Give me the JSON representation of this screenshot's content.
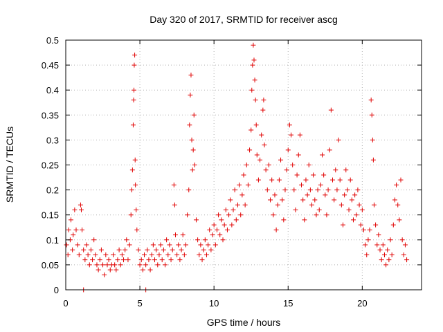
{
  "chart_data": {
    "type": "scatter",
    "title": "Day 320 of 2017, SRMTID for receiver ascg",
    "xlabel": "GPS time / hours",
    "ylabel": "SRMTID / TECUs",
    "xlim": [
      0,
      24
    ],
    "ylim": [
      0,
      0.5
    ],
    "x_ticks": [
      0,
      5,
      10,
      15,
      20
    ],
    "x_tick_labels": [
      "0",
      "5",
      "10",
      "15",
      "20"
    ],
    "y_ticks": [
      0,
      0.05,
      0.1,
      0.15,
      0.2,
      0.25,
      0.3,
      0.35,
      0.4,
      0.45,
      0.5
    ],
    "y_tick_labels": [
      "0",
      "0.05",
      "0.1",
      "0.15",
      "0.2",
      "0.25",
      "0.3",
      "0.35",
      "0.4",
      "0.45",
      "0.5"
    ],
    "grid": true,
    "marker": "plus",
    "series": [
      {
        "name": "SRMTID",
        "color": "#e00000",
        "points": [
          [
            0.05,
            0.09
          ],
          [
            0.15,
            0.07
          ],
          [
            0.2,
            0.12
          ],
          [
            0.3,
            0.1
          ],
          [
            0.35,
            0.14
          ],
          [
            0.45,
            0.08
          ],
          [
            0.5,
            0.11
          ],
          [
            0.6,
            0.16
          ],
          [
            0.7,
            0.12
          ],
          [
            0.8,
            0.09
          ],
          [
            0.9,
            0.07
          ],
          [
            1.0,
            0.17
          ],
          [
            1.05,
            0.16
          ],
          [
            1.1,
            0.12
          ],
          [
            1.2,
            0.08
          ],
          [
            1.3,
            0.06
          ],
          [
            1.4,
            0.09
          ],
          [
            1.5,
            0.07
          ],
          [
            1.6,
            0.05
          ],
          [
            1.7,
            0.08
          ],
          [
            1.8,
            0.06
          ],
          [
            1.9,
            0.1
          ],
          [
            2.0,
            0.07
          ],
          [
            2.1,
            0.05
          ],
          [
            2.2,
            0.04
          ],
          [
            2.3,
            0.06
          ],
          [
            2.4,
            0.08
          ],
          [
            2.5,
            0.05
          ],
          [
            2.6,
            0.03
          ],
          [
            2.7,
            0.07
          ],
          [
            2.8,
            0.05
          ],
          [
            2.9,
            0.06
          ],
          [
            3.0,
            0.04
          ],
          [
            3.1,
            0.05
          ],
          [
            3.2,
            0.07
          ],
          [
            3.3,
            0.05
          ],
          [
            3.4,
            0.04
          ],
          [
            3.5,
            0.06
          ],
          [
            3.6,
            0.08
          ],
          [
            3.7,
            0.05
          ],
          [
            3.8,
            0.07
          ],
          [
            3.9,
            0.06
          ],
          [
            4.0,
            0.08
          ],
          [
            4.1,
            0.1
          ],
          [
            4.2,
            0.06
          ],
          [
            4.3,
            0.09
          ],
          [
            4.4,
            0.15
          ],
          [
            4.45,
            0.2
          ],
          [
            4.5,
            0.24
          ],
          [
            4.55,
            0.33
          ],
          [
            4.58,
            0.38
          ],
          [
            4.6,
            0.4
          ],
          [
            4.62,
            0.45
          ],
          [
            4.65,
            0.47
          ],
          [
            4.68,
            0.26
          ],
          [
            4.7,
            0.21
          ],
          [
            4.75,
            0.16
          ],
          [
            4.8,
            0.12
          ],
          [
            4.9,
            0.08
          ],
          [
            5.0,
            0.05
          ],
          [
            5.1,
            0.06
          ],
          [
            5.2,
            0.04
          ],
          [
            5.3,
            0.07
          ],
          [
            5.4,
            0.05
          ],
          [
            5.5,
            0.08
          ],
          [
            5.6,
            0.06
          ],
          [
            5.7,
            0.04
          ],
          [
            5.8,
            0.07
          ],
          [
            5.9,
            0.09
          ],
          [
            6.0,
            0.06
          ],
          [
            6.1,
            0.08
          ],
          [
            6.2,
            0.05
          ],
          [
            6.3,
            0.07
          ],
          [
            6.4,
            0.09
          ],
          [
            6.5,
            0.06
          ],
          [
            6.6,
            0.08
          ],
          [
            6.7,
            0.05
          ],
          [
            6.8,
            0.1
          ],
          [
            6.9,
            0.07
          ],
          [
            7.0,
            0.09
          ],
          [
            7.1,
            0.06
          ],
          [
            7.2,
            0.08
          ],
          [
            7.3,
            0.21
          ],
          [
            7.35,
            0.17
          ],
          [
            7.4,
            0.11
          ],
          [
            7.5,
            0.07
          ],
          [
            7.6,
            0.09
          ],
          [
            7.7,
            0.06
          ],
          [
            7.8,
            0.08
          ],
          [
            7.9,
            0.11
          ],
          [
            8.0,
            0.07
          ],
          [
            8.1,
            0.09
          ],
          [
            8.2,
            0.15
          ],
          [
            8.3,
            0.2
          ],
          [
            8.35,
            0.33
          ],
          [
            8.4,
            0.39
          ],
          [
            8.45,
            0.43
          ],
          [
            8.5,
            0.3
          ],
          [
            8.55,
            0.24
          ],
          [
            8.6,
            0.28
          ],
          [
            8.65,
            0.35
          ],
          [
            8.7,
            0.25
          ],
          [
            8.8,
            0.14
          ],
          [
            8.9,
            0.1
          ],
          [
            9.0,
            0.07
          ],
          [
            9.1,
            0.09
          ],
          [
            9.2,
            0.06
          ],
          [
            9.3,
            0.08
          ],
          [
            9.4,
            0.1
          ],
          [
            9.5,
            0.07
          ],
          [
            9.6,
            0.09
          ],
          [
            9.7,
            0.12
          ],
          [
            9.8,
            0.08
          ],
          [
            9.9,
            0.11
          ],
          [
            10.0,
            0.13
          ],
          [
            10.1,
            0.09
          ],
          [
            10.2,
            0.12
          ],
          [
            10.3,
            0.15
          ],
          [
            10.4,
            0.11
          ],
          [
            10.5,
            0.14
          ],
          [
            10.6,
            0.1
          ],
          [
            10.7,
            0.13
          ],
          [
            10.8,
            0.16
          ],
          [
            10.9,
            0.12
          ],
          [
            11.0,
            0.15
          ],
          [
            11.1,
            0.18
          ],
          [
            11.2,
            0.13
          ],
          [
            11.3,
            0.16
          ],
          [
            11.4,
            0.2
          ],
          [
            11.5,
            0.14
          ],
          [
            11.6,
            0.17
          ],
          [
            11.7,
            0.21
          ],
          [
            11.8,
            0.15
          ],
          [
            11.9,
            0.19
          ],
          [
            12.0,
            0.23
          ],
          [
            12.1,
            0.17
          ],
          [
            12.2,
            0.25
          ],
          [
            12.3,
            0.21
          ],
          [
            12.4,
            0.28
          ],
          [
            12.5,
            0.32
          ],
          [
            12.55,
            0.4
          ],
          [
            12.6,
            0.45
          ],
          [
            12.65,
            0.49
          ],
          [
            12.7,
            0.46
          ],
          [
            12.75,
            0.42
          ],
          [
            12.8,
            0.38
          ],
          [
            12.85,
            0.33
          ],
          [
            12.9,
            0.27
          ],
          [
            13.0,
            0.22
          ],
          [
            13.1,
            0.26
          ],
          [
            13.2,
            0.31
          ],
          [
            13.3,
            0.36
          ],
          [
            13.35,
            0.38
          ],
          [
            13.4,
            0.29
          ],
          [
            13.5,
            0.24
          ],
          [
            13.6,
            0.2
          ],
          [
            13.7,
            0.25
          ],
          [
            13.8,
            0.18
          ],
          [
            13.9,
            0.22
          ],
          [
            14.0,
            0.15
          ],
          [
            14.1,
            0.19
          ],
          [
            14.2,
            0.12
          ],
          [
            14.3,
            0.17
          ],
          [
            14.4,
            0.22
          ],
          [
            14.5,
            0.26
          ],
          [
            14.6,
            0.18
          ],
          [
            14.7,
            0.14
          ],
          [
            14.8,
            0.2
          ],
          [
            14.9,
            0.24
          ],
          [
            15.0,
            0.28
          ],
          [
            15.1,
            0.33
          ],
          [
            15.2,
            0.31
          ],
          [
            15.3,
            0.25
          ],
          [
            15.4,
            0.2
          ],
          [
            15.5,
            0.16
          ],
          [
            15.6,
            0.23
          ],
          [
            15.7,
            0.27
          ],
          [
            15.8,
            0.31
          ],
          [
            15.9,
            0.21
          ],
          [
            16.0,
            0.18
          ],
          [
            16.1,
            0.14
          ],
          [
            16.2,
            0.22
          ],
          [
            16.3,
            0.19
          ],
          [
            16.4,
            0.25
          ],
          [
            16.5,
            0.2
          ],
          [
            16.6,
            0.17
          ],
          [
            16.7,
            0.23
          ],
          [
            16.8,
            0.18
          ],
          [
            16.9,
            0.15
          ],
          [
            17.0,
            0.2
          ],
          [
            17.1,
            0.16
          ],
          [
            17.2,
            0.21
          ],
          [
            17.3,
            0.27
          ],
          [
            17.4,
            0.23
          ],
          [
            17.5,
            0.19
          ],
          [
            17.6,
            0.15
          ],
          [
            17.7,
            0.2
          ],
          [
            17.8,
            0.28
          ],
          [
            17.9,
            0.36
          ],
          [
            18.0,
            0.22
          ],
          [
            18.1,
            0.18
          ],
          [
            18.2,
            0.24
          ],
          [
            18.3,
            0.2
          ],
          [
            18.4,
            0.3
          ],
          [
            18.5,
            0.22
          ],
          [
            18.6,
            0.17
          ],
          [
            18.7,
            0.13
          ],
          [
            18.8,
            0.19
          ],
          [
            18.9,
            0.24
          ],
          [
            19.0,
            0.2
          ],
          [
            19.1,
            0.16
          ],
          [
            19.2,
            0.22
          ],
          [
            19.3,
            0.18
          ],
          [
            19.4,
            0.14
          ],
          [
            19.5,
            0.19
          ],
          [
            19.6,
            0.15
          ],
          [
            19.7,
            0.2
          ],
          [
            19.8,
            0.17
          ],
          [
            19.9,
            0.13
          ],
          [
            20.0,
            0.16
          ],
          [
            20.1,
            0.12
          ],
          [
            20.2,
            0.09
          ],
          [
            20.3,
            0.07
          ],
          [
            20.4,
            0.1
          ],
          [
            20.5,
            0.12
          ],
          [
            20.6,
            0.38
          ],
          [
            20.65,
            0.35
          ],
          [
            20.7,
            0.3
          ],
          [
            20.75,
            0.26
          ],
          [
            20.8,
            0.17
          ],
          [
            20.9,
            0.13
          ],
          [
            21.0,
            0.09
          ],
          [
            21.1,
            0.11
          ],
          [
            21.2,
            0.08
          ],
          [
            21.3,
            0.06
          ],
          [
            21.4,
            0.09
          ],
          [
            21.5,
            0.07
          ],
          [
            21.6,
            0.05
          ],
          [
            21.7,
            0.08
          ],
          [
            21.8,
            0.06
          ],
          [
            21.9,
            0.1
          ],
          [
            22.0,
            0.07
          ],
          [
            22.1,
            0.13
          ],
          [
            22.2,
            0.18
          ],
          [
            22.3,
            0.21
          ],
          [
            22.4,
            0.17
          ],
          [
            22.5,
            0.14
          ],
          [
            22.6,
            0.22
          ],
          [
            22.7,
            0.1
          ],
          [
            22.8,
            0.07
          ],
          [
            22.9,
            0.09
          ],
          [
            23.0,
            0.06
          ],
          [
            1.2,
            0.0
          ],
          [
            5.4,
            0.0
          ]
        ]
      }
    ]
  }
}
